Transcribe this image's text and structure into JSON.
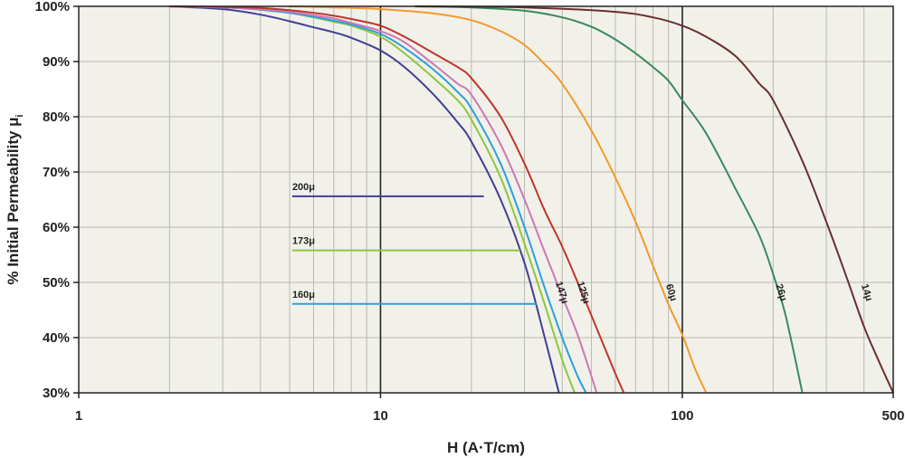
{
  "chart_data": {
    "type": "line",
    "xlabel": "H (A·T/cm)",
    "ylabel": "% Initial Permeability μ",
    "ylabel_sub": "i",
    "xscale": "log",
    "xlim": [
      1,
      500
    ],
    "ylim": [
      30,
      100
    ],
    "x_ticks": [
      {
        "value": 1,
        "label": "1"
      },
      {
        "value": 10,
        "label": "10"
      },
      {
        "value": 100,
        "label": "100"
      },
      {
        "value": 500,
        "label": "500"
      }
    ],
    "y_ticks": [
      {
        "value": 30,
        "label": "30%"
      },
      {
        "value": 40,
        "label": "40%"
      },
      {
        "value": 50,
        "label": "50%"
      },
      {
        "value": 60,
        "label": "60%"
      },
      {
        "value": 70,
        "label": "70%"
      },
      {
        "value": 80,
        "label": "80%"
      },
      {
        "value": 90,
        "label": "90%"
      },
      {
        "value": 100,
        "label": "100%"
      }
    ],
    "grid": true,
    "series": [
      {
        "name": "200μ",
        "color": "#3f3f94",
        "label_style": "legend",
        "label_x": 5.1,
        "label_y": 65.6,
        "line_x_end": 22,
        "x": [
          2,
          3,
          4,
          5,
          6,
          7,
          8,
          10,
          12,
          15,
          18,
          20,
          25,
          30,
          35,
          39
        ],
        "y": [
          100,
          99.5,
          98.5,
          97.3,
          96.2,
          95.3,
          94.3,
          92,
          89,
          84,
          79,
          75.5,
          65,
          53.5,
          40,
          30
        ]
      },
      {
        "name": "173μ",
        "color": "#8cc63f",
        "label_style": "legend",
        "label_x": 5.1,
        "label_y": 55.8,
        "line_x_end": 29,
        "x": [
          2,
          3,
          4,
          5,
          6,
          7,
          8,
          10,
          12,
          15,
          18,
          20,
          25,
          30,
          35,
          40,
          44
        ],
        "y": [
          100,
          99.8,
          99.4,
          98.8,
          98,
          97.2,
          96.5,
          94.5,
          91.5,
          87,
          83,
          79.5,
          69,
          57,
          46,
          36,
          30
        ]
      },
      {
        "name": "160μ",
        "color": "#2d9fdc",
        "label_style": "legend",
        "label_x": 5.1,
        "label_y": 46.1,
        "line_x_end": 33,
        "x": [
          2,
          3,
          4,
          5,
          6,
          7,
          8,
          10,
          12,
          15,
          18,
          20,
          25,
          30,
          35,
          40,
          45,
          48
        ],
        "y": [
          100,
          99.8,
          99.4,
          98.8,
          98.1,
          97.4,
          96.7,
          95,
          92.5,
          88.5,
          84.5,
          81.5,
          71.5,
          60,
          49,
          40,
          33,
          30
        ]
      },
      {
        "name": "147μ",
        "color": "#cc77b6",
        "label_style": "inline",
        "label_x": 39,
        "label_y": 48,
        "x": [
          2,
          3,
          4,
          5,
          6,
          7,
          8,
          10,
          12,
          15,
          18,
          20,
          25,
          30,
          35,
          40,
          45,
          50,
          52
        ],
        "y": [
          100,
          99.8,
          99.5,
          99,
          98.4,
          97.8,
          97,
          95.5,
          93.5,
          89.5,
          86,
          84,
          75,
          65,
          55.5,
          47.5,
          40.5,
          33,
          30
        ]
      },
      {
        "name": "125μ",
        "color": "#c0352b",
        "label_style": "inline",
        "label_x": 46,
        "label_y": 48,
        "x": [
          2,
          3,
          4,
          5,
          6,
          7,
          8,
          10,
          12,
          15,
          18,
          20,
          25,
          30,
          35,
          40,
          45,
          50,
          55,
          60,
          64
        ],
        "y": [
          100,
          99.9,
          99.7,
          99.3,
          98.8,
          98.3,
          97.7,
          96.5,
          94.5,
          91.5,
          89,
          87,
          80,
          71.5,
          63,
          56.5,
          50,
          44,
          38.5,
          33.5,
          30
        ]
      },
      {
        "name": "60μ",
        "color": "#f39a29",
        "label_style": "inline",
        "label_x": 90,
        "label_y": 48,
        "x": [
          5,
          7,
          10,
          15,
          20,
          25,
          30,
          35,
          40,
          50,
          60,
          70,
          80,
          90,
          100,
          110,
          120
        ],
        "y": [
          100,
          99.8,
          99.5,
          98.7,
          97.5,
          95.5,
          93,
          89.5,
          86,
          77.5,
          69,
          61,
          53,
          46,
          40.5,
          34.5,
          30
        ]
      },
      {
        "name": "26μ",
        "color": "#3a8a5c",
        "label_style": "inline",
        "label_x": 208,
        "label_y": 48,
        "x": [
          13,
          20,
          30,
          40,
          50,
          60,
          70,
          80,
          90,
          100,
          120,
          150,
          180,
          200,
          220,
          250
        ],
        "y": [
          100,
          99.8,
          99.2,
          98,
          96.3,
          94,
          91.5,
          89,
          86.5,
          83,
          77,
          67,
          58.5,
          51.5,
          44,
          30
        ]
      },
      {
        "name": "14μ",
        "color": "#6a2e2e",
        "label_style": "inline",
        "label_x": 400,
        "label_y": 48,
        "x": [
          13,
          30,
          60,
          80,
          100,
          120,
          150,
          180,
          200,
          250,
          300,
          350,
          400,
          450,
          500
        ],
        "y": [
          100,
          99.8,
          99,
          98,
          96.5,
          94.5,
          91,
          86,
          83,
          72,
          61,
          51,
          42,
          35.5,
          30
        ]
      }
    ]
  }
}
